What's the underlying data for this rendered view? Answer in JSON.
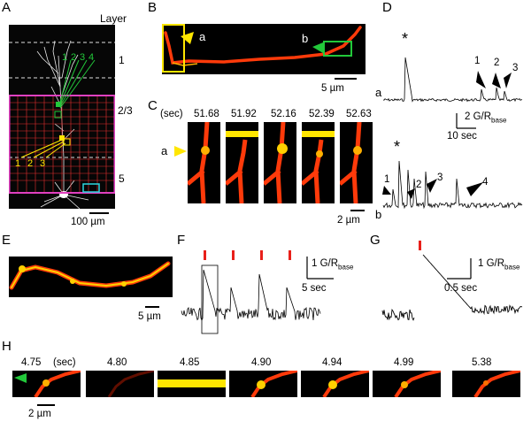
{
  "panels": {
    "A": {
      "label": "A",
      "layer_header": "Layer",
      "layers": [
        "1",
        "2/3",
        "5"
      ],
      "green_spots": [
        "1",
        "2",
        "3",
        "4"
      ],
      "yellow_spots": [
        "1",
        "2",
        "3"
      ],
      "scalebar": "100 µm"
    },
    "B": {
      "label": "B",
      "marker_a": "a",
      "marker_b": "b",
      "scalebar": "5 µm"
    },
    "C": {
      "label": "C",
      "time_unit": "(sec)",
      "times": [
        "51.68",
        "51.92",
        "52.16",
        "52.39",
        "52.63"
      ],
      "marker": "a",
      "scalebar": "2 µm"
    },
    "D": {
      "label": "D",
      "trace_a_label": "a",
      "trace_b_label": "b",
      "asterisk": "*",
      "arrows_a": [
        "1",
        "2",
        "3"
      ],
      "arrows_b": [
        "1",
        "2",
        "3",
        "4"
      ],
      "scale_time": "10 sec",
      "scale_amp": "2 G/R",
      "scale_amp_sub": "base"
    },
    "E": {
      "label": "E",
      "scalebar": "5 µm"
    },
    "F": {
      "label": "F",
      "scale_time": "5 sec",
      "scale_amp": "1 G/R",
      "scale_amp_sub": "base"
    },
    "G": {
      "label": "G",
      "scale_time": "0.5 sec",
      "scale_amp": "1 G/R",
      "scale_amp_sub": "base"
    },
    "H": {
      "label": "H",
      "times": [
        "4.75",
        "4.80",
        "4.85",
        "4.90",
        "4.94",
        "4.99",
        "5.38"
      ],
      "time_unit": "(sec)",
      "scalebar": "2 µm"
    }
  },
  "colors": {
    "green": "#22c83a",
    "yellow": "#ffe600",
    "magenta": "#e040c0",
    "cyan": "#2ad8e0",
    "red_bar": "#e8201a",
    "dendrite": "#ff3a0a"
  }
}
